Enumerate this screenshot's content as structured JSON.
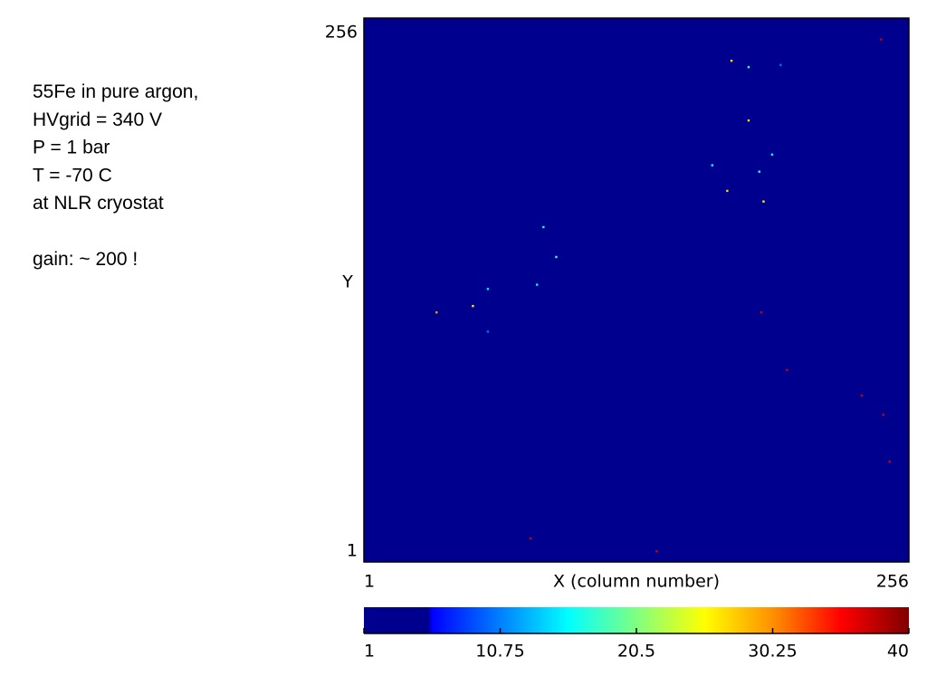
{
  "chart_data": {
    "type": "pixelmap",
    "notes": [
      [
        "55Fe in pure argon,",
        "HVgrid = 340 V",
        "P = 1 bar",
        "T = -70 C",
        "at NLR cryostat"
      ],
      [
        "gain: ~ 200 !"
      ]
    ],
    "xlabel": "X (column number)",
    "ylabel": "Y",
    "xlim": [
      1,
      256
    ],
    "ylim": [
      1,
      256
    ],
    "xticks": [
      1,
      256
    ],
    "yticks": [
      1,
      256
    ],
    "background_color": "#00008f",
    "colormap": "jet",
    "x": [
      243,
      173,
      181,
      196,
      181,
      164,
      192,
      186,
      171,
      188,
      85,
      91,
      82,
      59,
      52,
      35,
      59,
      187,
      199,
      234,
      244,
      247,
      79,
      138
    ],
    "y": [
      246,
      236,
      233,
      234,
      208,
      187,
      192,
      184,
      175,
      170,
      158,
      144,
      131,
      129,
      121,
      118,
      109,
      118,
      91,
      79,
      70,
      48,
      12,
      6
    ],
    "values": [
      37,
      27,
      17,
      10,
      27,
      16,
      16,
      17,
      27,
      26,
      16,
      18,
      15,
      15,
      26,
      30,
      10,
      37,
      37,
      37,
      37,
      37,
      37,
      37
    ],
    "colorbar": {
      "lim": [
        1,
        40
      ],
      "ticks": [
        1,
        10.75,
        20.5,
        30.25,
        40
      ]
    }
  }
}
